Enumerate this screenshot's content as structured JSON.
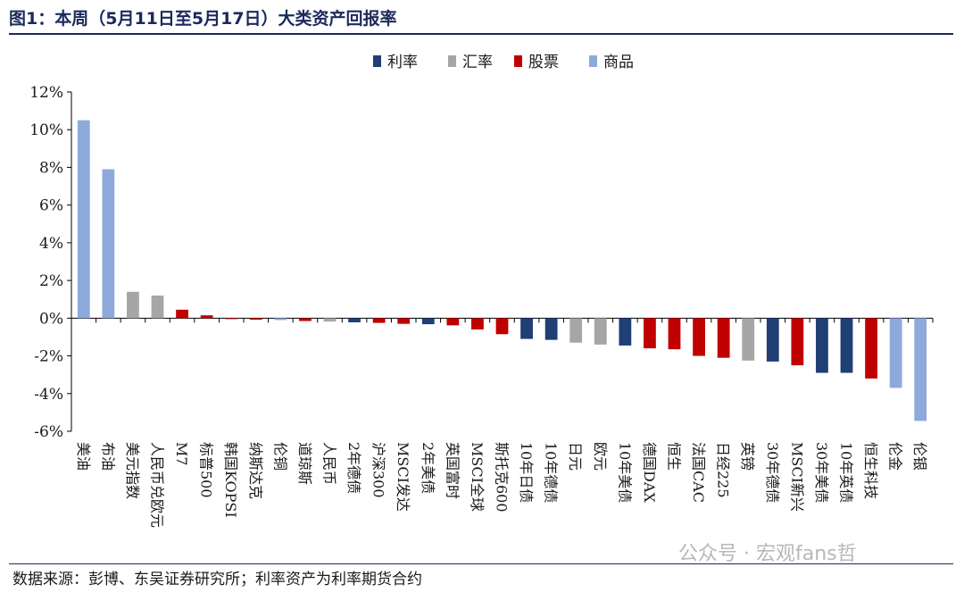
{
  "header": {
    "title": "图1：本周（5月11日至5月17日）大类资产回报率"
  },
  "footer": {
    "source": "数据来源：彭博、东吴证券研究所；利率资产为利率期货合约"
  },
  "watermark": {
    "text": "公众号 · 宏观fans哲"
  },
  "colors": {
    "利率": "#1f3f75",
    "汇率": "#a6a6a6",
    "股票": "#c00000",
    "商品": "#8eaadb"
  },
  "chart_data": {
    "type": "bar",
    "title": "",
    "xlabel": "",
    "ylabel": "",
    "ylim": [
      -6,
      12
    ],
    "yticks": [
      12,
      10,
      8,
      6,
      4,
      2,
      0,
      -2,
      -4,
      -6
    ],
    "ytick_labels": [
      "12%",
      "10%",
      "8%",
      "6%",
      "4%",
      "2%",
      "0%",
      "-2%",
      "-4%",
      "-6%"
    ],
    "legend_position": "top-center",
    "legend": [
      "利率",
      "汇率",
      "股票",
      "商品"
    ],
    "categories": [
      "美油",
      "布油",
      "美元指数",
      "人民币兑欧元",
      "M7",
      "标普500",
      "韩国KOPSI",
      "纳斯达克",
      "伦铜",
      "道琼斯",
      "人民币",
      "2年德债",
      "沪深300",
      "MSCI发达",
      "2年美债",
      "英国富时",
      "MSCI全球",
      "斯托克600",
      "10年日债",
      "10年德债",
      "日元",
      "欧元",
      "10年美债",
      "德国DAX",
      "恒生",
      "法国CAC",
      "日经225",
      "英镑",
      "30年德债",
      "MSCI新兴",
      "30年美债",
      "10年英债",
      "恒生科技",
      "伦金",
      "伦银"
    ],
    "values": [
      10.5,
      7.9,
      1.4,
      1.2,
      0.45,
      0.15,
      -0.05,
      -0.08,
      -0.1,
      -0.15,
      -0.18,
      -0.22,
      -0.25,
      -0.3,
      -0.32,
      -0.38,
      -0.6,
      -0.85,
      -1.1,
      -1.15,
      -1.3,
      -1.4,
      -1.45,
      -1.6,
      -1.65,
      -2.0,
      -2.1,
      -2.25,
      -2.3,
      -2.5,
      -2.9,
      -2.9,
      -3.2,
      -3.7,
      -5.45
    ],
    "groups": [
      "商品",
      "商品",
      "汇率",
      "汇率",
      "股票",
      "股票",
      "股票",
      "股票",
      "商品",
      "股票",
      "汇率",
      "利率",
      "股票",
      "股票",
      "利率",
      "股票",
      "股票",
      "股票",
      "利率",
      "利率",
      "汇率",
      "汇率",
      "利率",
      "股票",
      "股票",
      "股票",
      "股票",
      "汇率",
      "利率",
      "股票",
      "利率",
      "利率",
      "股票",
      "商品",
      "商品"
    ]
  }
}
